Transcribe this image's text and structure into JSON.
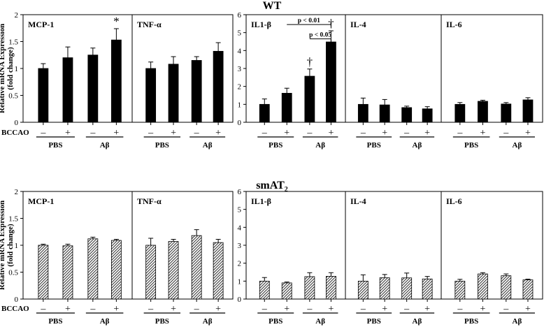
{
  "patterns": {
    "wt_fill": "#000000",
    "smat2_hatch_bg": "#ffffff",
    "smat2_hatch_line": "#3a3a3a",
    "frame": "#000000"
  },
  "chart_data": [
    {
      "type": "bar",
      "title": "WT",
      "ylabel": [
        "Relative mRNA Expression",
        "(fold change)"
      ],
      "condition_label": "BCCAO",
      "condition_values": [
        "–",
        "+",
        "–",
        "+"
      ],
      "group_labels": [
        "PBS",
        "Aβ"
      ],
      "blocks": [
        {
          "ylim": [
            0,
            2
          ],
          "yticks": [
            "0",
            "0.5",
            "1",
            "1.5",
            "2"
          ],
          "panels": [
            {
              "name": "MCP-1",
              "values": [
                1.0,
                1.2,
                1.25,
                1.53
              ],
              "errors": [
                0.09,
                0.2,
                0.13,
                0.21
              ],
              "annotations": [
                {
                  "bar": 3,
                  "text": "*"
                }
              ]
            },
            {
              "name": "TNF-α",
              "values": [
                1.0,
                1.08,
                1.15,
                1.32
              ],
              "errors": [
                0.12,
                0.14,
                0.07,
                0.16
              ],
              "annotations": []
            }
          ]
        },
        {
          "ylim": [
            0,
            6
          ],
          "yticks": [
            "0",
            "1",
            "2",
            "3",
            "4",
            "5",
            "6"
          ],
          "panels": [
            {
              "name": "IL1-β",
              "values": [
                1.0,
                1.62,
                2.57,
                4.48
              ],
              "errors": [
                0.3,
                0.28,
                0.4,
                0.62
              ],
              "annotations": [
                {
                  "bar": 2,
                  "text": "†"
                },
                {
                  "bar": 3,
                  "text": "†"
                }
              ],
              "brackets": [
                {
                  "from": 1,
                  "to": 3,
                  "y": 5.45,
                  "text": "p < 0.01"
                },
                {
                  "from": 2,
                  "to": 3,
                  "y": 4.65,
                  "text": "p < 0.05"
                }
              ]
            },
            {
              "name": "IL-4",
              "values": [
                1.0,
                0.97,
                0.82,
                0.75
              ],
              "errors": [
                0.35,
                0.3,
                0.08,
                0.12
              ],
              "annotations": []
            },
            {
              "name": "IL-6",
              "values": [
                1.0,
                1.17,
                1.02,
                1.25
              ],
              "errors": [
                0.1,
                0.06,
                0.08,
                0.12
              ],
              "annotations": []
            }
          ]
        }
      ]
    },
    {
      "type": "bar",
      "title": "smAT",
      "title_subscript": "2",
      "ylabel": [
        "Relative mRNA Expression",
        "(fold change)"
      ],
      "condition_label": "BCCAO",
      "condition_values": [
        "–",
        "+",
        "–",
        "+"
      ],
      "group_labels": [
        "PBS",
        "Aβ"
      ],
      "blocks": [
        {
          "ylim": [
            0,
            2
          ],
          "yticks": [
            "0",
            "0.5",
            "1",
            "1.5",
            "2"
          ],
          "panels": [
            {
              "name": "MCP-1",
              "values": [
                1.0,
                0.99,
                1.12,
                1.09
              ],
              "errors": [
                0.02,
                0.03,
                0.03,
                0.02
              ],
              "annotations": []
            },
            {
              "name": "TNF-α",
              "values": [
                1.0,
                1.07,
                1.18,
                1.05
              ],
              "errors": [
                0.13,
                0.04,
                0.11,
                0.06
              ],
              "annotations": []
            }
          ]
        },
        {
          "ylim": [
            0,
            6
          ],
          "yticks": [
            "0",
            "1",
            "2",
            "3",
            "4",
            "5",
            "6"
          ],
          "panels": [
            {
              "name": "IL1-β",
              "values": [
                1.0,
                0.9,
                1.25,
                1.27
              ],
              "errors": [
                0.2,
                0.05,
                0.22,
                0.2
              ],
              "annotations": []
            },
            {
              "name": "IL-4",
              "values": [
                1.0,
                1.19,
                1.18,
                1.12
              ],
              "errors": [
                0.35,
                0.18,
                0.27,
                0.14
              ],
              "annotations": []
            },
            {
              "name": "IL-6",
              "values": [
                1.0,
                1.4,
                1.3,
                1.07
              ],
              "errors": [
                0.1,
                0.07,
                0.1,
                0.04
              ],
              "annotations": []
            }
          ]
        }
      ]
    }
  ]
}
